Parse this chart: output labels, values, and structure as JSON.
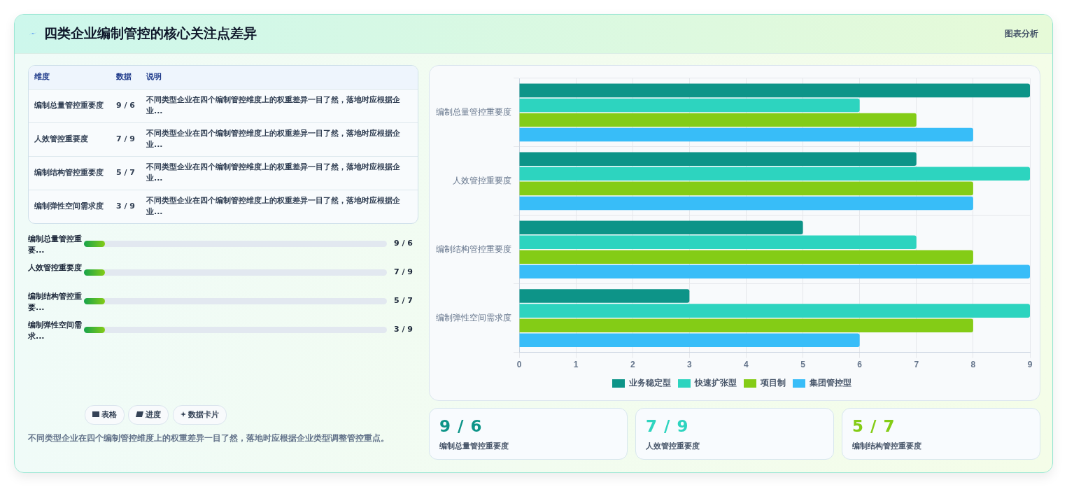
{
  "chart_data": [
    {
      "type": "other",
      "title": "四类企业编制管控的核心关注点差异",
      "subtitle": "图表分析"
    },
    {
      "type": "bar",
      "orientation": "horizontal",
      "categories": [
        "编制总量管控重要度",
        "人效管控重要度",
        "编制结构管控重要度",
        "编制弹性空间需求度"
      ],
      "series": [
        {
          "name": "业务稳定型",
          "color": "#0d9488",
          "values": [
            9,
            7,
            5,
            3
          ]
        },
        {
          "name": "快速扩张型",
          "color": "#2dd4bf",
          "values": [
            6,
            9,
            7,
            9
          ]
        },
        {
          "name": "项目制",
          "color": "#84cc16",
          "values": [
            7,
            8,
            8,
            8
          ]
        },
        {
          "name": "集团管控型",
          "color": "#38bdf8",
          "values": [
            8,
            8,
            9,
            6
          ]
        }
      ],
      "xlim": [
        0,
        9
      ],
      "xticks": [
        0,
        1,
        2,
        3,
        4,
        5,
        6,
        7,
        8,
        9
      ],
      "grid": true,
      "legend": "bottom"
    },
    {
      "type": "other",
      "annotations": [
        "维度",
        "数据",
        "说明",
        "编制总量管控重要度",
        "9 / 6",
        "不同类型企业在四个编制管控维度上的权重差异一目了然，落地时应根据企业...",
        "人效管控重要度",
        "7 / 9",
        "不同类型企业在四个编制管控维度上的权重差异一目了然，落地时应根据企业...",
        "编制结构管控重要度",
        "5 / 7",
        "不同类型企业在四个编制管控维度上的权重差异一目了然，落地时应根据企业...",
        "编制弹性空间需求度",
        "3 / 9",
        "不同类型企业在四个编制管控维度上的权重差异一目了然，落地时应根据企业...",
        "编制总量管控重要...",
        "9 / 6",
        "人效管控重要度",
        "7 / 9",
        "编制结构管控重要...",
        "5 / 7",
        "编制弹性空间需求...",
        "3 / 9",
        "表格",
        "进度",
        "数据卡片",
        "不同类型企业在四个编制管控维度上的权重差异一目了然，落地时应根据企业类型调整管控重点。"
      ]
    },
    {
      "type": "other",
      "annotations": [
        "9 / 6",
        "编制总量管控重要度",
        "7 / 9",
        "人效管控重要度",
        "5 / 7",
        "编制结构管控重要度"
      ],
      "colors": [
        "#0d9488",
        "#2dd4bf",
        "#84cc16"
      ]
    }
  ]
}
